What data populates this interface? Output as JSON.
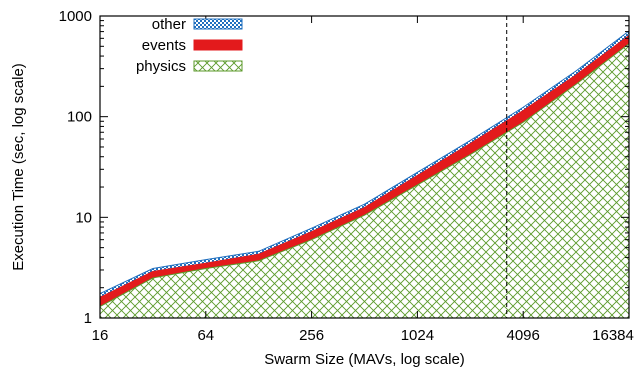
{
  "chart_data": {
    "type": "area",
    "stacked": true,
    "title": "",
    "xlabel": "Swarm Size (MAVs, log scale)",
    "ylabel": "Execution Time (sec, log scale)",
    "x_scale": "log2",
    "y_scale": "log10",
    "xlim": [
      16,
      16384
    ],
    "ylim": [
      1,
      1000
    ],
    "x_ticks": [
      "16",
      "64",
      "256",
      "1024",
      "4096",
      "16384"
    ],
    "y_ticks": [
      "1",
      "10",
      "100",
      "1000"
    ],
    "x": [
      16,
      32,
      64,
      128,
      256,
      512,
      1024,
      2048,
      4096,
      8192,
      16384
    ],
    "series": [
      {
        "name": "physics",
        "cumulative": [
          1.3,
          2.5,
          3.1,
          3.7,
          6.0,
          10.5,
          21,
          42,
          88,
          210,
          530
        ],
        "color": "#5b9a2a",
        "pattern": "crosshatch"
      },
      {
        "name": "events",
        "cumulative": [
          1.6,
          2.9,
          3.5,
          4.3,
          7.2,
          12.5,
          26,
          54,
          115,
          260,
          640
        ],
        "color": "#e31a1c",
        "pattern": "solid"
      },
      {
        "name": "other",
        "cumulative": [
          1.75,
          3.1,
          3.8,
          4.6,
          7.8,
          13.5,
          28,
          58,
          124,
          285,
          710
        ],
        "color": "#1f6fbf",
        "pattern": "checker"
      }
    ],
    "annotations": [
      {
        "type": "vertical-dashed-line",
        "x": 3300
      }
    ],
    "legend_position": "top-left",
    "grid": false
  }
}
